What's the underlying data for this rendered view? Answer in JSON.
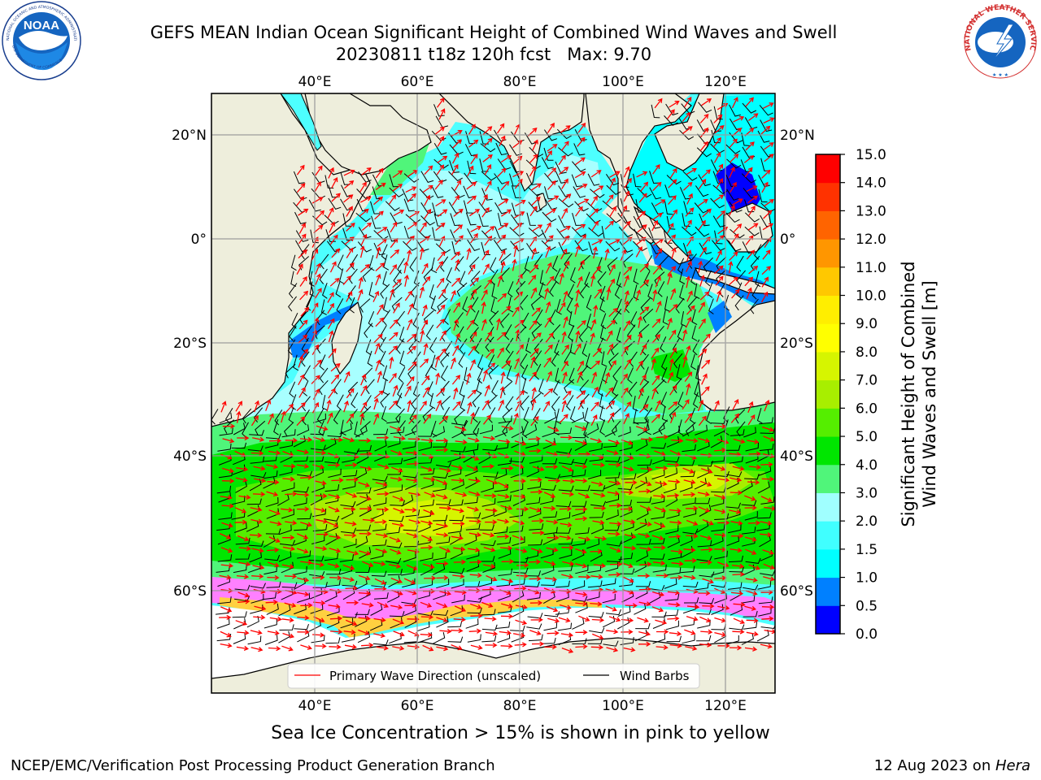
{
  "title": {
    "line1": "GEFS MEAN Indian Ocean Significant Height of Combined Wind Waves and Swell",
    "line2": "20230811 t18z 120h fcst   Max: 9.70"
  },
  "map": {
    "lon_ticks_top": [
      "40°E",
      "60°E",
      "80°E",
      "100°E",
      "120°E"
    ],
    "lon_ticks_bottom": [
      "40°E",
      "60°E",
      "80°E",
      "100°E",
      "120°E"
    ],
    "lat_ticks_left": [
      "20°N",
      "0°",
      "20°S",
      "40°S",
      "60°S"
    ],
    "lat_ticks_right": [
      "20°N",
      "0°",
      "20°S",
      "40°S",
      "60°S"
    ],
    "lon_range": [
      20,
      129
    ],
    "lat_range": [
      -75,
      28
    ],
    "grid": true
  },
  "legend": {
    "primary_wave": "Primary Wave Direction (unscaled)",
    "wind_barbs": "Wind Barbs",
    "primary_wave_color": "#ff0000",
    "wind_barb_color": "#000000"
  },
  "colorbar": {
    "label_line1": "Significant Height of Combined",
    "label_line2": "Wind Waves and Swell [m]",
    "ticks": [
      "0.0",
      "0.5",
      "1.0",
      "1.5",
      "2.0",
      "3.0",
      "4.0",
      "5.0",
      "6.0",
      "7.0",
      "8.0",
      "9.0",
      "10.0",
      "11.0",
      "12.0",
      "13.0",
      "14.0",
      "15.0"
    ],
    "colors": [
      "#0000ff",
      "#0080ff",
      "#00ffff",
      "#40ffff",
      "#a0ffff",
      "#50f57a",
      "#00e600",
      "#55ee00",
      "#a8ee00",
      "#d6f500",
      "#ffff00",
      "#ffee00",
      "#ffc800",
      "#ff9600",
      "#ff6400",
      "#ff3200",
      "#ff0000"
    ]
  },
  "ice_note": "Sea Ice Concentration > 15% is shown in pink to yellow",
  "footer": {
    "left": "NCEP/EMC/Verification Post Processing Product Generation Branch",
    "right_prefix": "12 Aug 2023 on ",
    "right_machine": "Hera"
  },
  "logos": {
    "noaa_text": "NOAA",
    "noaa_ring": "NATIONAL OCEANIC AND ATMOSPHERIC ADMINISTRATION",
    "noaa_ring_bottom": "U.S. DEPARTMENT OF COMMERCE",
    "nws_ring": "NATIONAL WEATHER SERVICE"
  }
}
